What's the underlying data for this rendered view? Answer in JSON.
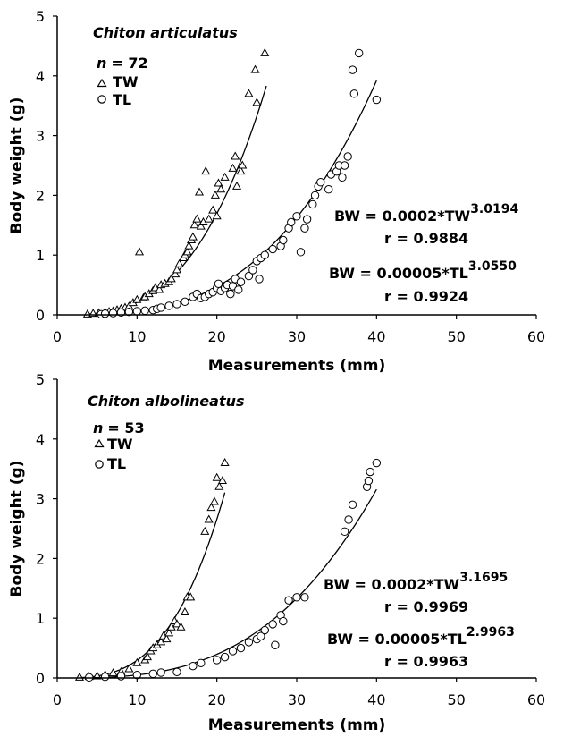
{
  "chart_data": [
    {
      "type": "scatter",
      "species": "Chiton articulatus",
      "n_label": "n",
      "n_value": "= 72",
      "xlabel": "Measurements (mm)",
      "ylabel": "Body weight (g)",
      "xlim": [
        0,
        60
      ],
      "ylim": [
        0,
        5
      ],
      "xticks": [
        "0",
        "10",
        "20",
        "30",
        "40",
        "50",
        "60"
      ],
      "yticks": [
        "0",
        "1",
        "2",
        "3",
        "4",
        "5"
      ],
      "series": [
        {
          "name": "TW",
          "marker": "triangle",
          "fit": {
            "a": 0.0002,
            "b": 3.0194,
            "xmin": 4,
            "xmax": 26.2
          },
          "points": [
            [
              3.8,
              0.01
            ],
            [
              4.5,
              0.02
            ],
            [
              5.2,
              0.03
            ],
            [
              6,
              0.04
            ],
            [
              6.5,
              0.05
            ],
            [
              7,
              0.06
            ],
            [
              7.5,
              0.08
            ],
            [
              8,
              0.1
            ],
            [
              8.5,
              0.12
            ],
            [
              9,
              0.14
            ],
            [
              9.5,
              0.2
            ],
            [
              10,
              0.25
            ],
            [
              10.3,
              1.05
            ],
            [
              10.8,
              0.28
            ],
            [
              11,
              0.3
            ],
            [
              11.5,
              0.35
            ],
            [
              12,
              0.4
            ],
            [
              12.3,
              0.45
            ],
            [
              12.8,
              0.42
            ],
            [
              13,
              0.5
            ],
            [
              13.5,
              0.52
            ],
            [
              14,
              0.55
            ],
            [
              14.3,
              0.6
            ],
            [
              14.8,
              0.68
            ],
            [
              15,
              0.75
            ],
            [
              15.3,
              0.85
            ],
            [
              15.8,
              0.95
            ],
            [
              16,
              1.0
            ],
            [
              16.3,
              1.05
            ],
            [
              16.5,
              1.15
            ],
            [
              16.8,
              1.25
            ],
            [
              17,
              1.3
            ],
            [
              17.2,
              1.5
            ],
            [
              17.5,
              1.6
            ],
            [
              17.8,
              2.05
            ],
            [
              18,
              1.48
            ],
            [
              18.3,
              1.55
            ],
            [
              18.6,
              2.4
            ],
            [
              19,
              1.6
            ],
            [
              19.5,
              1.75
            ],
            [
              19.8,
              2.0
            ],
            [
              20,
              1.65
            ],
            [
              20.2,
              2.2
            ],
            [
              20.5,
              2.1
            ],
            [
              21,
              2.3
            ],
            [
              22,
              2.45
            ],
            [
              22.3,
              2.65
            ],
            [
              22.5,
              2.15
            ],
            [
              23,
              2.4
            ],
            [
              23.2,
              2.5
            ],
            [
              24,
              3.7
            ],
            [
              24.8,
              4.1
            ],
            [
              25,
              3.55
            ],
            [
              26,
              4.38
            ]
          ]
        },
        {
          "name": "TL",
          "marker": "circle",
          "fit": {
            "a": 5e-05,
            "b": 3.055,
            "xmin": 5,
            "xmax": 40
          },
          "points": [
            [
              5.5,
              0.01
            ],
            [
              6,
              0.02
            ],
            [
              7,
              0.03
            ],
            [
              8,
              0.04
            ],
            [
              9,
              0.05
            ],
            [
              10,
              0.06
            ],
            [
              11,
              0.07
            ],
            [
              12,
              0.08
            ],
            [
              12.5,
              0.1
            ],
            [
              13,
              0.12
            ],
            [
              14,
              0.15
            ],
            [
              15,
              0.18
            ],
            [
              16,
              0.22
            ],
            [
              17,
              0.3
            ],
            [
              17.5,
              0.35
            ],
            [
              18,
              0.28
            ],
            [
              18.5,
              0.3
            ],
            [
              19,
              0.35
            ],
            [
              19.5,
              0.38
            ],
            [
              20,
              0.45
            ],
            [
              20.2,
              0.52
            ],
            [
              20.5,
              0.4
            ],
            [
              21,
              0.45
            ],
            [
              21.3,
              0.5
            ],
            [
              21.7,
              0.35
            ],
            [
              22,
              0.48
            ],
            [
              22.3,
              0.6
            ],
            [
              22.7,
              0.42
            ],
            [
              23,
              0.55
            ],
            [
              24,
              0.65
            ],
            [
              24.5,
              0.75
            ],
            [
              25,
              0.9
            ],
            [
              25.3,
              0.6
            ],
            [
              25.5,
              0.95
            ],
            [
              26,
              1.0
            ],
            [
              27,
              1.1
            ],
            [
              28,
              1.15
            ],
            [
              28.3,
              1.25
            ],
            [
              29,
              1.45
            ],
            [
              29.3,
              1.55
            ],
            [
              30,
              1.65
            ],
            [
              30.5,
              1.05
            ],
            [
              31,
              1.45
            ],
            [
              31.3,
              1.6
            ],
            [
              32,
              1.85
            ],
            [
              32.3,
              2.0
            ],
            [
              32.7,
              2.15
            ],
            [
              33,
              2.22
            ],
            [
              34,
              2.1
            ],
            [
              34.3,
              2.35
            ],
            [
              35,
              2.4
            ],
            [
              35.3,
              2.5
            ],
            [
              35.7,
              2.3
            ],
            [
              36,
              2.5
            ],
            [
              36.4,
              2.65
            ],
            [
              37,
              4.1
            ],
            [
              37.2,
              3.7
            ],
            [
              37.8,
              4.38
            ],
            [
              40,
              3.6
            ]
          ]
        }
      ],
      "equations": [
        {
          "lhs": "BW = 0.0002*TW",
          "exp": "3.0194",
          "r": "r = 0.9884"
        },
        {
          "lhs": "BW = 0.00005*TL",
          "exp": "3.0550",
          "r": "r = 0.9924"
        }
      ]
    },
    {
      "type": "scatter",
      "species": "Chiton albolineatus",
      "n_label": "n",
      "n_value": "= 53",
      "xlabel": "Measurements (mm)",
      "ylabel": "Body weight (g)",
      "xlim": [
        0,
        60
      ],
      "ylim": [
        0,
        5
      ],
      "xticks": [
        "0",
        "10",
        "20",
        "30",
        "40",
        "50",
        "60"
      ],
      "yticks": [
        "0",
        "1",
        "2",
        "3",
        "4",
        "5"
      ],
      "series": [
        {
          "name": "TW",
          "marker": "triangle",
          "fit": {
            "a": 0.0002,
            "b": 3.1695,
            "xmin": 2.5,
            "xmax": 21
          },
          "points": [
            [
              2.8,
              0.01
            ],
            [
              4,
              0.02
            ],
            [
              5,
              0.03
            ],
            [
              6,
              0.05
            ],
            [
              7,
              0.08
            ],
            [
              8,
              0.1
            ],
            [
              9,
              0.15
            ],
            [
              10,
              0.25
            ],
            [
              11,
              0.3
            ],
            [
              11.3,
              0.35
            ],
            [
              11.7,
              0.45
            ],
            [
              12,
              0.5
            ],
            [
              12.5,
              0.55
            ],
            [
              13,
              0.6
            ],
            [
              13.3,
              0.7
            ],
            [
              13.7,
              0.65
            ],
            [
              14,
              0.75
            ],
            [
              14.3,
              0.85
            ],
            [
              14.7,
              0.95
            ],
            [
              15,
              0.9
            ],
            [
              15.5,
              0.85
            ],
            [
              16,
              1.1
            ],
            [
              16.3,
              1.35
            ],
            [
              16.7,
              1.35
            ],
            [
              18.5,
              2.45
            ],
            [
              19,
              2.65
            ],
            [
              19.3,
              2.85
            ],
            [
              19.7,
              2.95
            ],
            [
              20,
              3.35
            ],
            [
              20.3,
              3.2
            ],
            [
              20.7,
              3.3
            ],
            [
              21,
              3.6
            ]
          ]
        },
        {
          "name": "TL",
          "marker": "circle",
          "fit": {
            "a": 5e-05,
            "b": 2.9963,
            "xmin": 4,
            "xmax": 40
          },
          "points": [
            [
              4,
              0.01
            ],
            [
              6,
              0.02
            ],
            [
              8,
              0.03
            ],
            [
              10,
              0.05
            ],
            [
              12,
              0.07
            ],
            [
              13,
              0.09
            ],
            [
              15,
              0.1
            ],
            [
              17,
              0.2
            ],
            [
              18,
              0.25
            ],
            [
              20,
              0.3
            ],
            [
              21,
              0.35
            ],
            [
              22,
              0.45
            ],
            [
              23,
              0.5
            ],
            [
              24,
              0.6
            ],
            [
              25,
              0.65
            ],
            [
              25.5,
              0.7
            ],
            [
              26,
              0.8
            ],
            [
              27,
              0.9
            ],
            [
              27.3,
              0.55
            ],
            [
              28,
              1.05
            ],
            [
              28.3,
              0.95
            ],
            [
              29,
              1.3
            ],
            [
              30,
              1.35
            ],
            [
              31,
              1.35
            ],
            [
              36,
              2.45
            ],
            [
              36.5,
              2.65
            ],
            [
              37,
              2.9
            ],
            [
              38.8,
              3.2
            ],
            [
              39,
              3.3
            ],
            [
              39.2,
              3.45
            ],
            [
              40,
              3.6
            ]
          ]
        }
      ],
      "equations": [
        {
          "lhs": "BW = 0.0002*TW",
          "exp": "3.1695",
          "r": "r = 0.9969"
        },
        {
          "lhs": "BW = 0.00005*TL",
          "exp": "2.9963",
          "r": "r = 0.9963"
        }
      ]
    }
  ]
}
